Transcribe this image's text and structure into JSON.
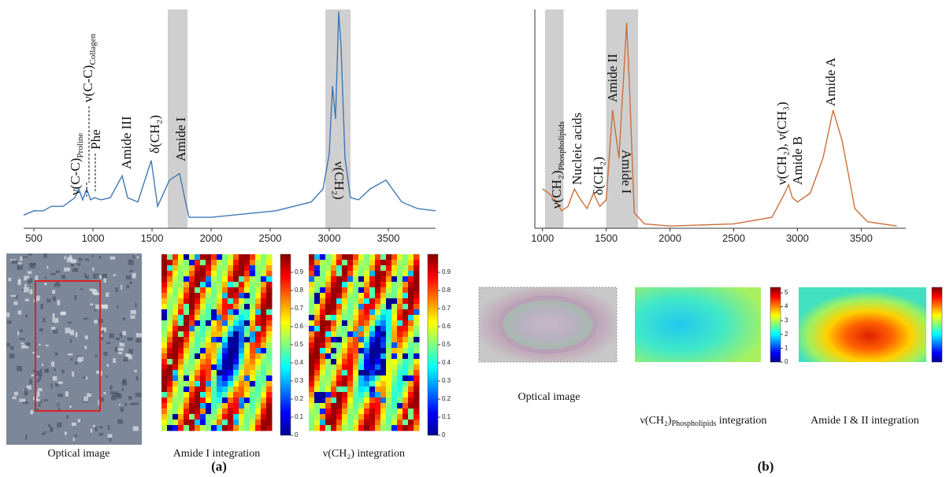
{
  "chart_data": [
    {
      "type": "line",
      "color": "#3f78b8",
      "xlim": [
        413,
        3900
      ],
      "ylim": [
        0,
        1
      ],
      "xticks": [
        500,
        1000,
        1500,
        2000,
        2500,
        3000,
        3500
      ],
      "x": [
        413,
        500,
        580,
        647,
        747,
        847,
        880,
        913,
        947,
        980,
        1013,
        1067,
        1147,
        1247,
        1293,
        1380,
        1493,
        1547,
        1647,
        1733,
        1780,
        1813,
        2000,
        2547,
        2847,
        2947,
        3000,
        3027,
        3053,
        3080,
        3100,
        3133,
        3180,
        3247,
        3347,
        3480,
        3613,
        3747,
        3900
      ],
      "values": [
        0.06,
        0.08,
        0.08,
        0.1,
        0.1,
        0.14,
        0.18,
        0.13,
        0.18,
        0.13,
        0.14,
        0.13,
        0.14,
        0.24,
        0.14,
        0.12,
        0.31,
        0.1,
        0.22,
        0.25,
        0.13,
        0.05,
        0.05,
        0.08,
        0.12,
        0.18,
        0.34,
        0.65,
        0.5,
        0.99,
        0.83,
        0.32,
        0.14,
        0.13,
        0.18,
        0.22,
        0.12,
        0.09,
        0.08
      ],
      "bands": [
        [
          1633,
          1800
        ],
        [
          2967,
          3180
        ]
      ],
      "annotations": [
        {
          "text": "ν(C-C)",
          "sub": "Proline"
        },
        {
          "text": "ν(C-C)",
          "sub": "Collagen"
        },
        {
          "text": "Phe"
        },
        {
          "text": "Amide III"
        },
        {
          "text": "δ(CH₂)"
        },
        {
          "text": "Amide I"
        },
        {
          "text": "ν(CH₂)"
        }
      ]
    },
    {
      "type": "line",
      "color": "#c9703c",
      "xlim": [
        940,
        3850
      ],
      "ylim": [
        0,
        1
      ],
      "xticks": [
        1000,
        1500,
        2000,
        2500,
        3000,
        3500
      ],
      "x": [
        1000,
        1050,
        1100,
        1150,
        1200,
        1250,
        1300,
        1350,
        1400,
        1450,
        1500,
        1550,
        1600,
        1650,
        1660,
        1680,
        1720,
        1800,
        2000,
        2500,
        2800,
        2900,
        2930,
        2960,
        3000,
        3100,
        3200,
        3280,
        3350,
        3450,
        3550,
        3780
      ],
      "values": [
        0.18,
        0.16,
        0.13,
        0.08,
        0.1,
        0.18,
        0.13,
        0.09,
        0.16,
        0.1,
        0.13,
        0.54,
        0.32,
        0.83,
        0.94,
        0.68,
        0.07,
        0.02,
        0.01,
        0.02,
        0.05,
        0.16,
        0.2,
        0.14,
        0.12,
        0.16,
        0.32,
        0.54,
        0.4,
        0.09,
        0.03,
        0.01
      ],
      "bands": [
        [
          1020,
          1165
        ],
        [
          1500,
          1750
        ]
      ],
      "annotations": [
        {
          "text": "ν(CH₂)",
          "sub": "Phospholipids"
        },
        {
          "text": "Nucleic acids"
        },
        {
          "text": "δ(CH₂)"
        },
        {
          "text": "Amide II"
        },
        {
          "text": "Amide I"
        },
        {
          "text": "ν(CH₂), ν(CH₃)"
        },
        {
          "text": "Amide B"
        },
        {
          "text": "Amide A"
        }
      ]
    }
  ],
  "panels": [
    {
      "label": "(a)",
      "images": [
        {
          "caption": "Optical image"
        },
        {
          "caption": "Amide I integration",
          "colorbar": {
            "lim": [
              0,
              1
            ],
            "ticks": [
              0,
              0.1,
              0.2,
              0.3,
              0.4,
              0.5,
              0.6,
              0.7,
              0.8,
              0.9
            ]
          }
        },
        {
          "caption": "ν(CH₂) integration",
          "colorbar": {
            "lim": [
              0,
              1
            ],
            "ticks": [
              0,
              0.1,
              0.2,
              0.3,
              0.4,
              0.5,
              0.6,
              0.7,
              0.8,
              0.9
            ]
          }
        }
      ]
    },
    {
      "label": "(b)",
      "images": [
        {
          "caption": "Optical image"
        },
        {
          "caption": "ν(CH₂)",
          "caption_sub": "Phospholipids",
          "caption_suffix": " integration",
          "colorbar": {
            "lim": [
              0,
              5.4
            ],
            "ticks": [
              0,
              1,
              2,
              3,
              4,
              5
            ]
          }
        },
        {
          "caption": "Amide I & II integration",
          "colorbar": {
            "lim": [
              0,
              1
            ],
            "ticks": []
          }
        }
      ]
    }
  ]
}
